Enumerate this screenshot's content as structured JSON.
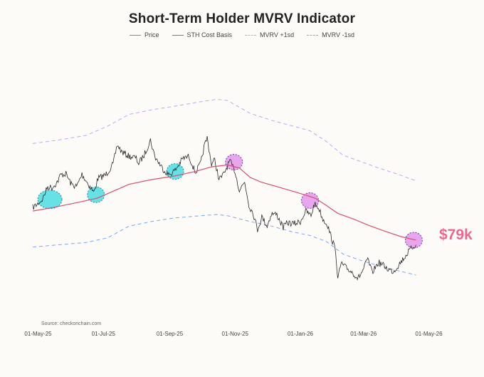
{
  "chart_data": {
    "type": "line",
    "title": "Short-Term Holder MVRV Indicator",
    "source": "Source: checkonchain.com",
    "callout": "$79k",
    "x_ticks": [
      "01-May-25",
      "01-Jul-25",
      "01-Sep-25",
      "01-Nov-25",
      "01-Jan-26",
      "01-Mar-26",
      "01-May-26"
    ],
    "x_tick_dates": [
      "2025-05-01",
      "2025-07-01",
      "2025-09-01",
      "2025-11-01",
      "2026-01-01",
      "2026-03-01",
      "2026-05-01"
    ],
    "xlim": [
      "2025-04-26",
      "2026-05-14"
    ],
    "ylim": [
      52000,
      150000
    ],
    "grid": false,
    "legend_position": "top-center",
    "series": [
      {
        "name": "Price",
        "color": "#8a8a8a",
        "style": "solid",
        "points": [
          [
            "2025-04-26",
            94500
          ],
          [
            "2025-04-30",
            95800
          ],
          [
            "2025-05-05",
            98000
          ],
          [
            "2025-05-10",
            103500
          ],
          [
            "2025-05-14",
            103000
          ],
          [
            "2025-05-19",
            105500
          ],
          [
            "2025-05-22",
            108500
          ],
          [
            "2025-05-27",
            109000
          ],
          [
            "2025-06-01",
            104500
          ],
          [
            "2025-06-06",
            103500
          ],
          [
            "2025-06-11",
            108800
          ],
          [
            "2025-06-17",
            104500
          ],
          [
            "2025-06-22",
            101000
          ],
          [
            "2025-06-26",
            107000
          ],
          [
            "2025-07-03",
            108500
          ],
          [
            "2025-07-10",
            113000
          ],
          [
            "2025-07-14",
            121500
          ],
          [
            "2025-07-18",
            118500
          ],
          [
            "2025-07-25",
            116500
          ],
          [
            "2025-07-31",
            116000
          ],
          [
            "2025-08-03",
            113500
          ],
          [
            "2025-08-08",
            117000
          ],
          [
            "2025-08-14",
            123500
          ],
          [
            "2025-08-18",
            116500
          ],
          [
            "2025-08-25",
            111500
          ],
          [
            "2025-08-31",
            108500
          ],
          [
            "2025-09-06",
            110500
          ],
          [
            "2025-09-13",
            115500
          ],
          [
            "2025-09-19",
            116500
          ],
          [
            "2025-09-25",
            109500
          ],
          [
            "2025-09-30",
            113500
          ],
          [
            "2025-10-03",
            120500
          ],
          [
            "2025-10-06",
            124500
          ],
          [
            "2025-10-10",
            113000
          ],
          [
            "2025-10-13",
            115000
          ],
          [
            "2025-10-17",
            106500
          ],
          [
            "2025-10-21",
            108500
          ],
          [
            "2025-10-27",
            114500
          ],
          [
            "2025-11-01",
            110000
          ],
          [
            "2025-11-05",
            102000
          ],
          [
            "2025-11-10",
            105500
          ],
          [
            "2025-11-14",
            95500
          ],
          [
            "2025-11-18",
            92000
          ],
          [
            "2025-11-22",
            85000
          ],
          [
            "2025-11-26",
            90500
          ],
          [
            "2025-12-01",
            86500
          ],
          [
            "2025-12-05",
            92000
          ],
          [
            "2025-12-10",
            91500
          ],
          [
            "2025-12-16",
            86000
          ],
          [
            "2025-12-20",
            88000
          ],
          [
            "2025-12-26",
            87500
          ],
          [
            "2026-01-01",
            88500
          ],
          [
            "2026-01-06",
            93000
          ],
          [
            "2026-01-11",
            91000
          ],
          [
            "2026-01-14",
            96000
          ],
          [
            "2026-01-18",
            94500
          ],
          [
            "2026-01-22",
            89500
          ],
          [
            "2026-01-26",
            87500
          ],
          [
            "2026-01-31",
            80000
          ],
          [
            "2026-02-03",
            76000
          ],
          [
            "2026-02-05",
            63500
          ],
          [
            "2026-02-08",
            70500
          ],
          [
            "2026-02-13",
            68500
          ],
          [
            "2026-02-19",
            66500
          ],
          [
            "2026-02-24",
            64000
          ],
          [
            "2026-03-01",
            68000
          ],
          [
            "2026-03-05",
            72500
          ],
          [
            "2026-03-09",
            66500
          ],
          [
            "2026-03-15",
            71000
          ],
          [
            "2026-03-20",
            69500
          ],
          [
            "2026-03-24",
            68000
          ],
          [
            "2026-03-29",
            67000
          ],
          [
            "2026-04-03",
            70000
          ],
          [
            "2026-04-08",
            73000
          ],
          [
            "2026-04-12",
            75500
          ],
          [
            "2026-04-16",
            77500
          ],
          [
            "2026-04-19",
            78500
          ]
        ]
      },
      {
        "name": "STH Cost Basis",
        "color": "#d9506e",
        "style": "solid",
        "points": [
          [
            "2025-04-26",
            93000
          ],
          [
            "2025-05-15",
            94500
          ],
          [
            "2025-06-05",
            96500
          ],
          [
            "2025-06-25",
            98500
          ],
          [
            "2025-07-10",
            101500
          ],
          [
            "2025-07-25",
            104500
          ],
          [
            "2025-08-15",
            106500
          ],
          [
            "2025-09-05",
            108000
          ],
          [
            "2025-09-25",
            110000
          ],
          [
            "2025-10-10",
            112000
          ],
          [
            "2025-10-25",
            112800
          ],
          [
            "2025-11-05",
            111500
          ],
          [
            "2025-11-15",
            107500
          ],
          [
            "2025-11-25",
            105500
          ],
          [
            "2025-12-10",
            103500
          ],
          [
            "2025-12-25",
            101500
          ],
          [
            "2026-01-05",
            100000
          ],
          [
            "2026-01-15",
            98500
          ],
          [
            "2026-01-25",
            95500
          ],
          [
            "2026-02-05",
            92000
          ],
          [
            "2026-02-20",
            89500
          ],
          [
            "2026-03-05",
            87000
          ],
          [
            "2026-03-20",
            84500
          ],
          [
            "2026-04-05",
            82000
          ],
          [
            "2026-04-19",
            80500
          ]
        ]
      },
      {
        "name": "MVRV +1sd",
        "color": "#c7a3f0",
        "style": "dashed",
        "points": [
          [
            "2025-04-26",
            122000
          ],
          [
            "2025-05-20",
            123500
          ],
          [
            "2025-06-15",
            125500
          ],
          [
            "2025-07-05",
            129500
          ],
          [
            "2025-07-25",
            134500
          ],
          [
            "2025-08-15",
            136500
          ],
          [
            "2025-09-05",
            138000
          ],
          [
            "2025-09-30",
            140000
          ],
          [
            "2025-10-15",
            141000
          ],
          [
            "2025-10-25",
            140500
          ],
          [
            "2025-11-15",
            135000
          ],
          [
            "2025-12-05",
            132000
          ],
          [
            "2025-12-25",
            129500
          ],
          [
            "2026-01-10",
            127500
          ],
          [
            "2026-01-25",
            123000
          ],
          [
            "2026-02-10",
            117000
          ],
          [
            "2026-02-25",
            114500
          ],
          [
            "2026-03-15",
            111500
          ],
          [
            "2026-04-01",
            109000
          ],
          [
            "2026-04-19",
            106000
          ]
        ]
      },
      {
        "name": "MVRV -1sd",
        "color": "#7aa7ee",
        "style": "dashed",
        "points": [
          [
            "2025-04-26",
            77500
          ],
          [
            "2025-05-20",
            78500
          ],
          [
            "2025-06-15",
            79500
          ],
          [
            "2025-07-05",
            81500
          ],
          [
            "2025-07-25",
            86500
          ],
          [
            "2025-08-15",
            88500
          ],
          [
            "2025-09-05",
            90000
          ],
          [
            "2025-09-30",
            91000
          ],
          [
            "2025-10-15",
            91500
          ],
          [
            "2025-10-25",
            91000
          ],
          [
            "2025-11-15",
            88500
          ],
          [
            "2025-12-05",
            86500
          ],
          [
            "2025-12-25",
            84000
          ],
          [
            "2026-01-10",
            82500
          ],
          [
            "2026-01-25",
            80000
          ],
          [
            "2026-02-10",
            74500
          ],
          [
            "2026-02-25",
            72000
          ],
          [
            "2026-03-15",
            69500
          ],
          [
            "2026-04-01",
            67500
          ],
          [
            "2026-04-19",
            65500
          ]
        ]
      }
    ],
    "highlights": [
      {
        "label": "cyan",
        "color": "#34d8e0",
        "date": "2025-05-12",
        "value": 98000
      },
      {
        "label": "cyan",
        "color": "#34d8e0",
        "date": "2025-06-24",
        "value": 100000
      },
      {
        "label": "cyan",
        "color": "#34d8e0",
        "date": "2025-09-06",
        "value": 110000
      },
      {
        "label": "purple",
        "color": "#e08ae8",
        "date": "2025-10-31",
        "value": 114000
      },
      {
        "label": "purple",
        "color": "#e08ae8",
        "date": "2026-01-10",
        "value": 97500
      },
      {
        "label": "purple",
        "color": "#e08ae8",
        "date": "2026-04-17",
        "value": 80500
      }
    ]
  }
}
